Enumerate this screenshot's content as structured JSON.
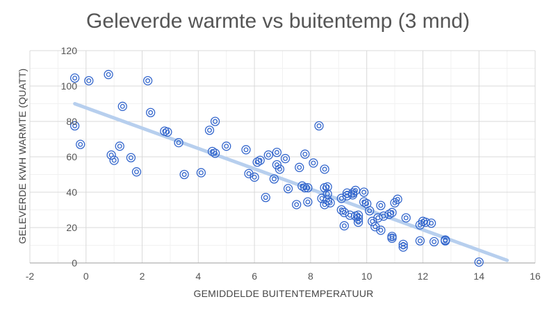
{
  "chart_data": {
    "type": "scatter",
    "title": "Geleverde warmte vs buitentemp (3 mnd)",
    "xlabel": "GEMIDDELDE BUITENTEMPERATUUR",
    "ylabel": "GELEVERDE KWH WARMTE (QUATT)",
    "xlim": [
      -2,
      16
    ],
    "ylim": [
      0,
      120
    ],
    "xticks": [
      -2,
      0,
      2,
      4,
      6,
      8,
      10,
      12,
      14,
      16
    ],
    "yticks": [
      0,
      20,
      40,
      60,
      80,
      100,
      120
    ],
    "grid": true,
    "legend": "none",
    "marker_color": "#3366cc",
    "trendline": {
      "x": [
        -0.4,
        15
      ],
      "y": [
        90,
        1.5
      ],
      "color": "#b7cfee"
    },
    "points": [
      {
        "x": -0.4,
        "y": 104.5
      },
      {
        "x": 0.1,
        "y": 103
      },
      {
        "x": 0.8,
        "y": 106.5
      },
      {
        "x": 2.2,
        "y": 103
      },
      {
        "x": 1.3,
        "y": 88.5
      },
      {
        "x": 2.3,
        "y": 85
      },
      {
        "x": -0.4,
        "y": 77.5
      },
      {
        "x": -0.2,
        "y": 67
      },
      {
        "x": 0.9,
        "y": 61
      },
      {
        "x": 1.0,
        "y": 58
      },
      {
        "x": 1.2,
        "y": 66
      },
      {
        "x": 1.6,
        "y": 59.5
      },
      {
        "x": 1.8,
        "y": 51.5
      },
      {
        "x": 2.8,
        "y": 74.5
      },
      {
        "x": 2.9,
        "y": 74
      },
      {
        "x": 3.3,
        "y": 68
      },
      {
        "x": 3.5,
        "y": 50
      },
      {
        "x": 4.1,
        "y": 51
      },
      {
        "x": 4.4,
        "y": 75
      },
      {
        "x": 4.6,
        "y": 80
      },
      {
        "x": 4.5,
        "y": 63
      },
      {
        "x": 4.6,
        "y": 62
      },
      {
        "x": 5.0,
        "y": 66
      },
      {
        "x": 5.7,
        "y": 64
      },
      {
        "x": 5.8,
        "y": 50.5
      },
      {
        "x": 6.0,
        "y": 48.5
      },
      {
        "x": 6.1,
        "y": 57
      },
      {
        "x": 6.2,
        "y": 58
      },
      {
        "x": 6.4,
        "y": 37
      },
      {
        "x": 6.5,
        "y": 61
      },
      {
        "x": 6.7,
        "y": 47.5
      },
      {
        "x": 6.8,
        "y": 62.5
      },
      {
        "x": 6.8,
        "y": 55.5
      },
      {
        "x": 6.9,
        "y": 53
      },
      {
        "x": 7.1,
        "y": 59
      },
      {
        "x": 7.2,
        "y": 42
      },
      {
        "x": 7.5,
        "y": 33
      },
      {
        "x": 7.6,
        "y": 54
      },
      {
        "x": 7.7,
        "y": 43.5
      },
      {
        "x": 7.8,
        "y": 42.5
      },
      {
        "x": 7.8,
        "y": 61.5
      },
      {
        "x": 7.9,
        "y": 34.5
      },
      {
        "x": 7.9,
        "y": 42.5
      },
      {
        "x": 8.1,
        "y": 56.5
      },
      {
        "x": 8.3,
        "y": 77.5
      },
      {
        "x": 8.4,
        "y": 36.5
      },
      {
        "x": 8.5,
        "y": 53
      },
      {
        "x": 8.5,
        "y": 42.5
      },
      {
        "x": 8.5,
        "y": 33
      },
      {
        "x": 8.6,
        "y": 43
      },
      {
        "x": 8.6,
        "y": 39
      },
      {
        "x": 8.6,
        "y": 35.5
      },
      {
        "x": 8.7,
        "y": 34
      },
      {
        "x": 9.1,
        "y": 36.5
      },
      {
        "x": 9.1,
        "y": 30
      },
      {
        "x": 9.2,
        "y": 21
      },
      {
        "x": 9.2,
        "y": 28.5
      },
      {
        "x": 9.3,
        "y": 39.5
      },
      {
        "x": 9.3,
        "y": 38
      },
      {
        "x": 9.4,
        "y": 27
      },
      {
        "x": 9.5,
        "y": 39.5
      },
      {
        "x": 9.5,
        "y": 38.5
      },
      {
        "x": 9.6,
        "y": 41
      },
      {
        "x": 9.6,
        "y": 26.5
      },
      {
        "x": 9.7,
        "y": 25
      },
      {
        "x": 9.7,
        "y": 23
      },
      {
        "x": 9.7,
        "y": 27
      },
      {
        "x": 9.9,
        "y": 40
      },
      {
        "x": 9.9,
        "y": 34.5
      },
      {
        "x": 10.0,
        "y": 33.5
      },
      {
        "x": 10.1,
        "y": 29.5
      },
      {
        "x": 10.2,
        "y": 23.5
      },
      {
        "x": 10.3,
        "y": 20.5
      },
      {
        "x": 10.4,
        "y": 25.5
      },
      {
        "x": 10.5,
        "y": 32.5
      },
      {
        "x": 10.5,
        "y": 18.5
      },
      {
        "x": 10.6,
        "y": 26.5
      },
      {
        "x": 10.8,
        "y": 27.5
      },
      {
        "x": 10.9,
        "y": 28.5
      },
      {
        "x": 10.9,
        "y": 15
      },
      {
        "x": 10.9,
        "y": 14
      },
      {
        "x": 11.0,
        "y": 34
      },
      {
        "x": 11.1,
        "y": 36
      },
      {
        "x": 11.3,
        "y": 10.5
      },
      {
        "x": 11.3,
        "y": 9
      },
      {
        "x": 11.4,
        "y": 25.5
      },
      {
        "x": 11.9,
        "y": 21.5
      },
      {
        "x": 11.9,
        "y": 12.5
      },
      {
        "x": 12.0,
        "y": 23.5
      },
      {
        "x": 12.1,
        "y": 23
      },
      {
        "x": 12.3,
        "y": 22.5
      },
      {
        "x": 12.4,
        "y": 12
      },
      {
        "x": 12.8,
        "y": 13
      },
      {
        "x": 12.8,
        "y": 12.5
      },
      {
        "x": 14.0,
        "y": 0.5
      }
    ]
  }
}
